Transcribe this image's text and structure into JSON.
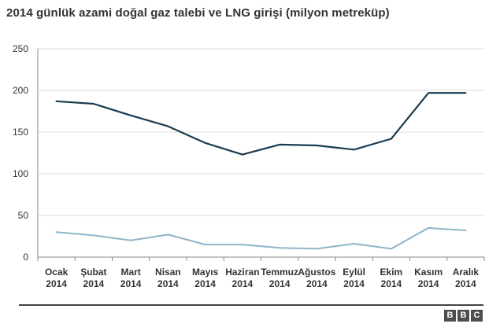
{
  "title": "2014 günlük azami doğal gaz talebi ve LNG girişi (milyon metreküp)",
  "colors": {
    "series_dark": "#1b3b50",
    "series_light": "#8fb4c9",
    "grid": "#dcdcdc",
    "axis": "#888888",
    "footer_rule": "#444444"
  },
  "logo": [
    "B",
    "B",
    "C"
  ],
  "chart_data": {
    "type": "line",
    "title": "2014 günlük azami doğal gaz talebi ve LNG girişi (milyon metreküp)",
    "categories": [
      [
        "Ocak",
        "2014"
      ],
      [
        "Şubat",
        "2014"
      ],
      [
        "Mart",
        "2014"
      ],
      [
        "Nisan",
        "2014"
      ],
      [
        "Mayıs",
        "2014"
      ],
      [
        "Haziran",
        "2014"
      ],
      [
        "Temmuz",
        "2014"
      ],
      [
        "Ağustos",
        "2014"
      ],
      [
        "Eylül",
        "2014"
      ],
      [
        "Ekim",
        "2014"
      ],
      [
        "Kasım",
        "2014"
      ],
      [
        "Aralık",
        "2014"
      ]
    ],
    "yticks": [
      0,
      50,
      100,
      150,
      200,
      250
    ],
    "ylim": [
      0,
      250
    ],
    "grid": "horizontal",
    "legend": "none",
    "series": [
      {
        "color": "#1b3b50",
        "values": [
          187,
          184,
          170,
          157,
          137,
          123,
          135,
          134,
          129,
          142,
          197,
          197
        ]
      },
      {
        "color": "#8fb4c9",
        "values": [
          30,
          26,
          20,
          27,
          15,
          15,
          11,
          10,
          16,
          10,
          35,
          32
        ]
      }
    ]
  }
}
